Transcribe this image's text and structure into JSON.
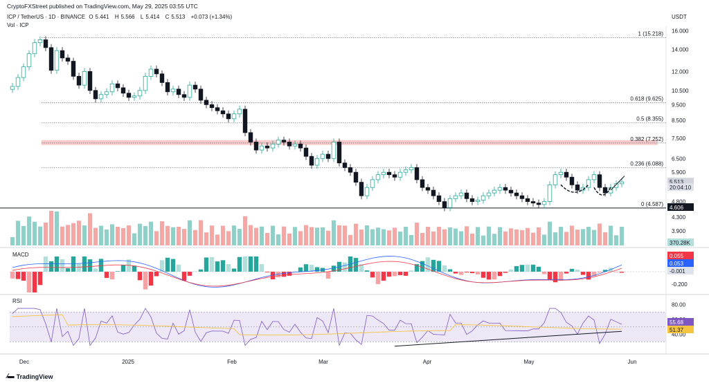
{
  "header": {
    "published": "CryptoFXStreet published on TradingView.com, May 29, 2025 03:55 UTC"
  },
  "symbol": {
    "pair": "ICP / TetherUS · 1D · BINANCE",
    "open_label": "O",
    "open": "5.441",
    "high_label": "H",
    "high": "5.566",
    "low_label": "L",
    "low": "5.414",
    "close_label": "C",
    "close": "5.513",
    "change": "+0.073 (+1.34%)",
    "volume_label": "Vol · ICP"
  },
  "currency": "USDT",
  "brand": "TradingView",
  "colors": {
    "up": "#26a69a",
    "down": "#131722",
    "vol_up": "#8fd0c9",
    "vol_down": "#f4a7a5",
    "resistance_zone": "#f7b4b4",
    "macd_line": "#2962ff",
    "signal_line": "#f23645",
    "rsi_line": "#7e57c2",
    "rsi_ma": "#f5c542",
    "rsi_band": "#ede7f6",
    "trendline": "#131722"
  },
  "chart_data": [
    {
      "type": "candlestick",
      "title": "ICP / TetherUS · 1D · BINANCE",
      "y_scale": "log",
      "ylim": [
        3.7,
        16.5
      ],
      "y_ticks": [
        "16.000",
        "14.000",
        "12.000",
        "10.500",
        "9.500",
        "8.500",
        "7.500",
        "6.500",
        "5.900",
        "4.800",
        "4.300",
        "3.900"
      ],
      "x_ticks": [
        "Dec",
        "2025",
        "Feb",
        "Mar",
        "Apr",
        "May",
        "Jun"
      ],
      "date_range": [
        "2024-11-29",
        "2025-05-29"
      ],
      "close_series": [
        10.8,
        11.5,
        12.4,
        13.6,
        14.7,
        15.0,
        14.2,
        12.1,
        13.9,
        13.2,
        12.9,
        11.6,
        10.9,
        12.0,
        10.5,
        9.9,
        10.2,
        10.4,
        11.0,
        10.7,
        10.3,
        10.0,
        10.1,
        10.5,
        11.6,
        12.2,
        11.8,
        11.1,
        10.4,
        10.6,
        10.2,
        10.0,
        10.9,
        10.6,
        9.8,
        9.5,
        9.3,
        9.1,
        8.9,
        8.6,
        8.9,
        9.2,
        7.8,
        7.3,
        6.9,
        7.1,
        7.0,
        7.2,
        7.4,
        7.3,
        7.1,
        7.2,
        7.0,
        6.6,
        6.2,
        6.5,
        6.7,
        6.5,
        7.3,
        6.3,
        6.1,
        5.9,
        5.5,
        5.0,
        5.3,
        5.6,
        5.8,
        5.9,
        5.8,
        5.7,
        5.9,
        6.0,
        6.1,
        5.6,
        5.3,
        5.2,
        5.0,
        4.8,
        4.6,
        4.9,
        5.0,
        5.1,
        4.9,
        4.8,
        4.85,
        5.0,
        5.1,
        5.2,
        5.3,
        5.2,
        5.1,
        5.0,
        4.9,
        4.8,
        4.75,
        4.7,
        4.8,
        5.4,
        5.8,
        5.9,
        5.7,
        5.4,
        5.2,
        5.3,
        5.6,
        5.8,
        5.3,
        5.1,
        5.3,
        5.441,
        5.513
      ],
      "levels": [
        {
          "label": "1 (15.218)",
          "value": 15.218
        },
        {
          "label": "0.618 (9.625)",
          "value": 9.625
        },
        {
          "label": "0.5 (8.355)",
          "value": 8.355
        },
        {
          "label": "0.382 (7.252)",
          "value": 7.252
        },
        {
          "label": "0.236 (6.088)",
          "value": 6.088
        },
        {
          "label": "0 (4.587)",
          "value": 4.587
        }
      ],
      "resistance_zone": [
        7.15,
        7.4
      ],
      "price_tags": [
        {
          "label": "5.513",
          "value": 5.513,
          "style": "current"
        },
        {
          "label": "20:04:10",
          "value": 5.3,
          "style": "countdown"
        },
        {
          "label": "4.606",
          "value": 4.606,
          "style": "dark"
        }
      ],
      "volume_tag": "370.28K"
    },
    {
      "type": "bar",
      "title": "MACD",
      "y_ticks": [
        "-0.200"
      ],
      "tags": [
        {
          "label": "0.055",
          "series": "signal"
        },
        {
          "label": "0.053",
          "series": "macd"
        },
        {
          "label": "-0.001",
          "series": "histogram"
        }
      ]
    },
    {
      "type": "line",
      "title": "RSI",
      "y_ticks": [
        "80.00",
        "60.00",
        "40.00"
      ],
      "band": [
        30,
        70
      ],
      "tags": [
        {
          "label": "55.68",
          "series": "rsi"
        },
        {
          "label": "51.37",
          "series": "rsi_ma"
        }
      ],
      "trendline": true
    }
  ]
}
